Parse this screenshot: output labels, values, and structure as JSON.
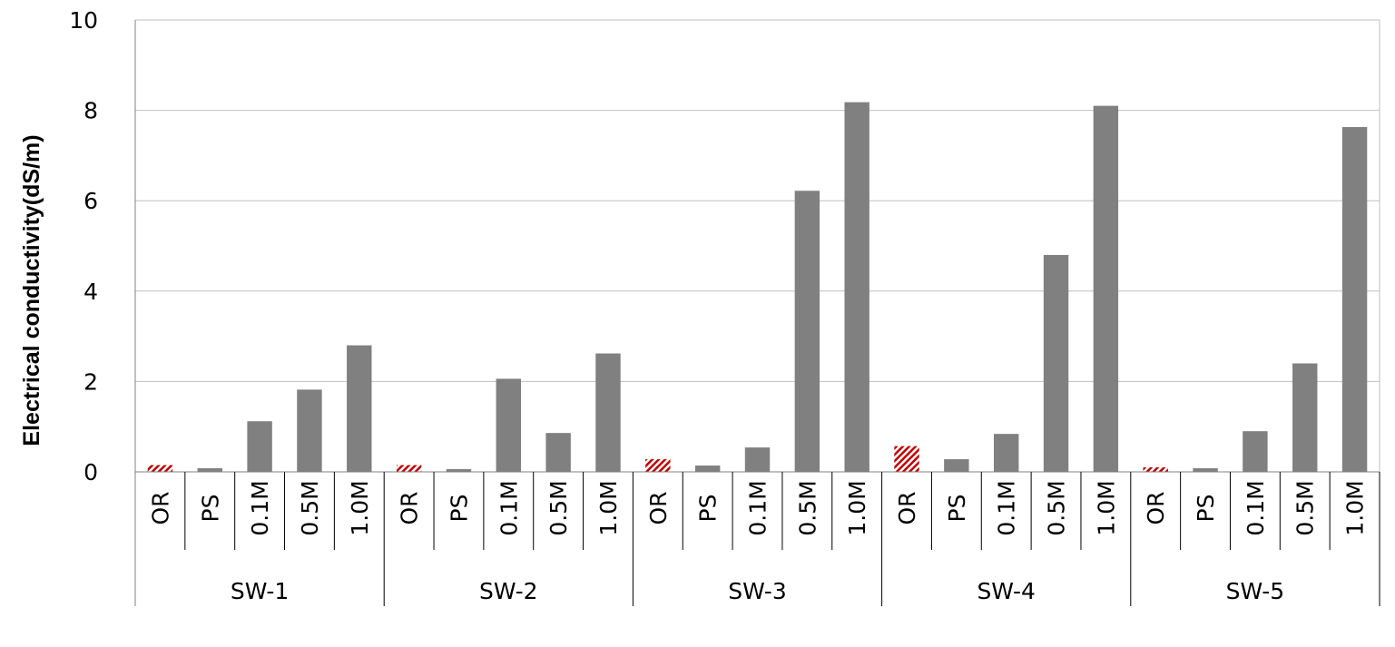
{
  "chart_data": {
    "type": "bar",
    "ylabel": "Electrical conductivity(dS/m)",
    "xlabel": "",
    "ylim": [
      0,
      10
    ],
    "yticks": [
      "0",
      "2",
      "4",
      "6",
      "8",
      "10"
    ],
    "grid": true,
    "groups": [
      {
        "name": "SW-1",
        "categories": [
          "OR",
          "PS",
          "0.1M",
          "0.5M",
          "1.0M"
        ],
        "values": [
          0.15,
          0.08,
          1.12,
          1.82,
          2.8
        ]
      },
      {
        "name": "SW-2",
        "categories": [
          "OR",
          "PS",
          "0.1M",
          "0.5M",
          "1.0M"
        ],
        "values": [
          0.15,
          0.06,
          2.06,
          0.86,
          2.62
        ]
      },
      {
        "name": "SW-3",
        "categories": [
          "OR",
          "PS",
          "0.1M",
          "0.5M",
          "1.0M"
        ],
        "values": [
          0.28,
          0.14,
          0.54,
          6.22,
          8.18
        ]
      },
      {
        "name": "SW-4",
        "categories": [
          "OR",
          "PS",
          "0.1M",
          "0.5M",
          "1.0M"
        ],
        "values": [
          0.57,
          0.28,
          0.84,
          4.8,
          8.1
        ]
      },
      {
        "name": "SW-5",
        "categories": [
          "OR",
          "PS",
          "0.1M",
          "0.5M",
          "1.0M"
        ],
        "values": [
          0.1,
          0.08,
          0.9,
          2.4,
          7.63
        ]
      }
    ],
    "colors": {
      "bar": "#808080",
      "or_stripe": "#c00000",
      "grid": "#bfbfbf",
      "axis": "#808080"
    }
  }
}
